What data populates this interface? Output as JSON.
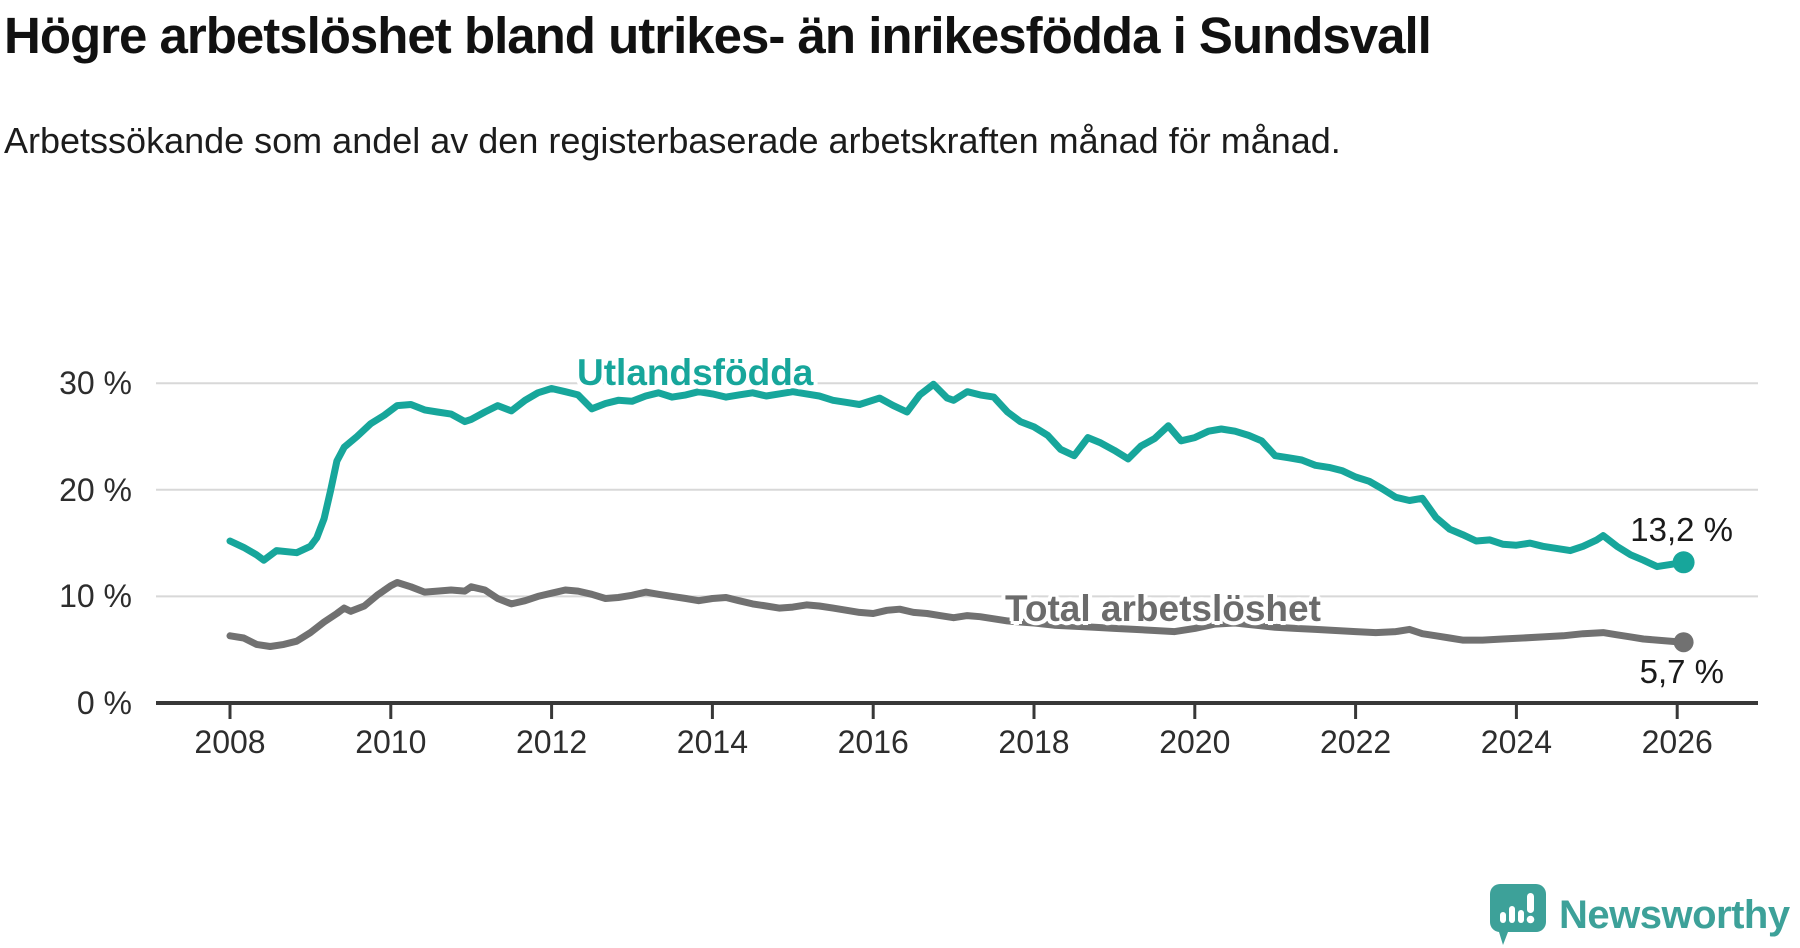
{
  "chart_data": {
    "type": "line",
    "title": "Högre arbetslöshet bland utrikes- än inrikesfödda i Sundsvall",
    "subtitle": "Arbetssökande som andel av den registerbaserade arbetskraften månad för månad.",
    "unit": "%",
    "xlim": [
      2007.3,
      2027.0
    ],
    "ylim": [
      0,
      32
    ],
    "grid": "horizontal",
    "grid_color": "#d8d8d8",
    "axis_color": "#383838",
    "x_ticks": [
      "2008",
      "2010",
      "2012",
      "2014",
      "2016",
      "2018",
      "2020",
      "2022",
      "2024",
      "2026"
    ],
    "y_ticks": [
      {
        "label": "0 %",
        "value": 0
      },
      {
        "label": "10 %",
        "value": 10
      },
      {
        "label": "20 %",
        "value": 20
      },
      {
        "label": "30 %",
        "value": 30
      }
    ],
    "series": [
      {
        "name": "Utlandsfödda",
        "color": "#17a69b",
        "end_label": "13,2 %",
        "end_value": 13.2,
        "dot_radius": 11,
        "points": [
          [
            2008,
            15.2
          ],
          [
            2008.17,
            14.6
          ],
          [
            2008.33,
            13.9
          ],
          [
            2008.42,
            13.4
          ],
          [
            2008.58,
            14.3
          ],
          [
            2008.83,
            14.1
          ],
          [
            2009,
            14.7
          ],
          [
            2009.08,
            15.5
          ],
          [
            2009.17,
            17.3
          ],
          [
            2009.25,
            19.9
          ],
          [
            2009.33,
            22.7
          ],
          [
            2009.42,
            24
          ],
          [
            2009.58,
            25
          ],
          [
            2009.75,
            26.2
          ],
          [
            2009.92,
            27
          ],
          [
            2010.08,
            27.9
          ],
          [
            2010.25,
            28
          ],
          [
            2010.42,
            27.5
          ],
          [
            2010.58,
            27.3
          ],
          [
            2010.75,
            27.1
          ],
          [
            2010.92,
            26.4
          ],
          [
            2011,
            26.6
          ],
          [
            2011.17,
            27.3
          ],
          [
            2011.33,
            27.9
          ],
          [
            2011.5,
            27.4
          ],
          [
            2011.67,
            28.4
          ],
          [
            2011.83,
            29.1
          ],
          [
            2012,
            29.5
          ],
          [
            2012.17,
            29.2
          ],
          [
            2012.33,
            28.9
          ],
          [
            2012.5,
            27.6
          ],
          [
            2012.67,
            28.1
          ],
          [
            2012.83,
            28.4
          ],
          [
            2013,
            28.3
          ],
          [
            2013.17,
            28.8
          ],
          [
            2013.33,
            29.1
          ],
          [
            2013.5,
            28.7
          ],
          [
            2013.67,
            28.9
          ],
          [
            2013.83,
            29.2
          ],
          [
            2014,
            29
          ],
          [
            2014.17,
            28.7
          ],
          [
            2014.33,
            28.9
          ],
          [
            2014.5,
            29.1
          ],
          [
            2014.67,
            28.8
          ],
          [
            2014.83,
            29
          ],
          [
            2015,
            29.2
          ],
          [
            2015.17,
            29
          ],
          [
            2015.33,
            28.8
          ],
          [
            2015.5,
            28.4
          ],
          [
            2015.67,
            28.2
          ],
          [
            2015.83,
            28
          ],
          [
            2016.08,
            28.6
          ],
          [
            2016.25,
            27.9
          ],
          [
            2016.42,
            27.3
          ],
          [
            2016.58,
            28.9
          ],
          [
            2016.75,
            29.9
          ],
          [
            2016.92,
            28.6
          ],
          [
            2017,
            28.4
          ],
          [
            2017.17,
            29.2
          ],
          [
            2017.33,
            28.9
          ],
          [
            2017.5,
            28.7
          ],
          [
            2017.67,
            27.3
          ],
          [
            2017.83,
            26.4
          ],
          [
            2018,
            25.9
          ],
          [
            2018.17,
            25.1
          ],
          [
            2018.33,
            23.8
          ],
          [
            2018.5,
            23.2
          ],
          [
            2018.67,
            24.9
          ],
          [
            2018.83,
            24.4
          ],
          [
            2019,
            23.7
          ],
          [
            2019.17,
            22.9
          ],
          [
            2019.33,
            24.1
          ],
          [
            2019.5,
            24.8
          ],
          [
            2019.67,
            26
          ],
          [
            2019.83,
            24.6
          ],
          [
            2020,
            24.9
          ],
          [
            2020.17,
            25.5
          ],
          [
            2020.33,
            25.7
          ],
          [
            2020.5,
            25.5
          ],
          [
            2020.67,
            25.1
          ],
          [
            2020.83,
            24.6
          ],
          [
            2021,
            23.2
          ],
          [
            2021.17,
            23
          ],
          [
            2021.33,
            22.8
          ],
          [
            2021.5,
            22.3
          ],
          [
            2021.67,
            22.1
          ],
          [
            2021.83,
            21.8
          ],
          [
            2022,
            21.2
          ],
          [
            2022.17,
            20.8
          ],
          [
            2022.33,
            20.1
          ],
          [
            2022.5,
            19.3
          ],
          [
            2022.67,
            19
          ],
          [
            2022.83,
            19.2
          ],
          [
            2023,
            17.4
          ],
          [
            2023.17,
            16.3
          ],
          [
            2023.33,
            15.8
          ],
          [
            2023.5,
            15.2
          ],
          [
            2023.67,
            15.3
          ],
          [
            2023.83,
            14.9
          ],
          [
            2024,
            14.8
          ],
          [
            2024.17,
            15
          ],
          [
            2024.33,
            14.7
          ],
          [
            2024.5,
            14.5
          ],
          [
            2024.67,
            14.3
          ],
          [
            2024.83,
            14.7
          ],
          [
            2025,
            15.3
          ],
          [
            2025.08,
            15.7
          ],
          [
            2025.25,
            14.7
          ],
          [
            2025.42,
            13.9
          ],
          [
            2025.58,
            13.4
          ],
          [
            2025.75,
            12.8
          ],
          [
            2025.92,
            13
          ],
          [
            2026.08,
            13.2
          ]
        ]
      },
      {
        "name": "Total arbetslöshet",
        "color": "#717171",
        "end_label": "5,7 %",
        "end_value": 5.7,
        "dot_radius": 10,
        "points": [
          [
            2008,
            6.3
          ],
          [
            2008.17,
            6.1
          ],
          [
            2008.33,
            5.5
          ],
          [
            2008.5,
            5.3
          ],
          [
            2008.67,
            5.5
          ],
          [
            2008.83,
            5.8
          ],
          [
            2009,
            6.6
          ],
          [
            2009.17,
            7.6
          ],
          [
            2009.33,
            8.4
          ],
          [
            2009.42,
            8.9
          ],
          [
            2009.5,
            8.6
          ],
          [
            2009.67,
            9.1
          ],
          [
            2009.83,
            10.1
          ],
          [
            2010,
            11
          ],
          [
            2010.08,
            11.3
          ],
          [
            2010.25,
            10.9
          ],
          [
            2010.42,
            10.4
          ],
          [
            2010.58,
            10.5
          ],
          [
            2010.75,
            10.6
          ],
          [
            2010.92,
            10.5
          ],
          [
            2011,
            10.9
          ],
          [
            2011.17,
            10.6
          ],
          [
            2011.33,
            9.8
          ],
          [
            2011.5,
            9.3
          ],
          [
            2011.67,
            9.6
          ],
          [
            2011.83,
            10
          ],
          [
            2012,
            10.3
          ],
          [
            2012.17,
            10.6
          ],
          [
            2012.33,
            10.5
          ],
          [
            2012.5,
            10.2
          ],
          [
            2012.67,
            9.8
          ],
          [
            2012.83,
            9.9
          ],
          [
            2013,
            10.1
          ],
          [
            2013.17,
            10.4
          ],
          [
            2013.33,
            10.2
          ],
          [
            2013.5,
            10
          ],
          [
            2013.67,
            9.8
          ],
          [
            2013.83,
            9.6
          ],
          [
            2014,
            9.8
          ],
          [
            2014.17,
            9.9
          ],
          [
            2014.33,
            9.6
          ],
          [
            2014.5,
            9.3
          ],
          [
            2014.67,
            9.1
          ],
          [
            2014.83,
            8.9
          ],
          [
            2015,
            9
          ],
          [
            2015.17,
            9.2
          ],
          [
            2015.33,
            9.1
          ],
          [
            2015.5,
            8.9
          ],
          [
            2015.67,
            8.7
          ],
          [
            2015.83,
            8.5
          ],
          [
            2016,
            8.4
          ],
          [
            2016.17,
            8.7
          ],
          [
            2016.33,
            8.8
          ],
          [
            2016.5,
            8.5
          ],
          [
            2016.67,
            8.4
          ],
          [
            2016.83,
            8.2
          ],
          [
            2017,
            8
          ],
          [
            2017.17,
            8.2
          ],
          [
            2017.33,
            8.1
          ],
          [
            2017.5,
            7.9
          ],
          [
            2017.67,
            7.7
          ],
          [
            2017.83,
            7.6
          ],
          [
            2018,
            7.5
          ],
          [
            2018.25,
            7.3
          ],
          [
            2018.5,
            7.2
          ],
          [
            2018.75,
            7.1
          ],
          [
            2019,
            7
          ],
          [
            2019.25,
            6.9
          ],
          [
            2019.5,
            6.8
          ],
          [
            2019.75,
            6.7
          ],
          [
            2020,
            7
          ],
          [
            2020.25,
            7.4
          ],
          [
            2020.5,
            7.5
          ],
          [
            2020.75,
            7.3
          ],
          [
            2021,
            7.1
          ],
          [
            2021.25,
            7
          ],
          [
            2021.5,
            6.9
          ],
          [
            2021.75,
            6.8
          ],
          [
            2022,
            6.7
          ],
          [
            2022.25,
            6.6
          ],
          [
            2022.5,
            6.7
          ],
          [
            2022.67,
            6.9
          ],
          [
            2022.83,
            6.5
          ],
          [
            2023,
            6.3
          ],
          [
            2023.17,
            6.1
          ],
          [
            2023.33,
            5.9
          ],
          [
            2023.58,
            5.9
          ],
          [
            2023.83,
            6
          ],
          [
            2024.08,
            6.1
          ],
          [
            2024.33,
            6.2
          ],
          [
            2024.58,
            6.3
          ],
          [
            2024.83,
            6.5
          ],
          [
            2025.08,
            6.6
          ],
          [
            2025.25,
            6.4
          ],
          [
            2025.42,
            6.2
          ],
          [
            2025.58,
            6
          ],
          [
            2025.75,
            5.9
          ],
          [
            2025.92,
            5.8
          ],
          [
            2026.08,
            5.7
          ]
        ]
      }
    ]
  },
  "logo": {
    "text": "Newsworthy",
    "color": "#3da199"
  }
}
